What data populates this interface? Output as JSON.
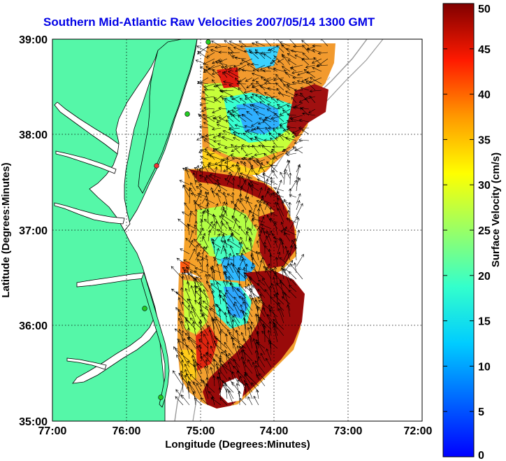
{
  "title": "Southern Mid-Atlantic Raw Velocities 2007/05/14 1300 GMT",
  "map": {
    "xlabel": "Longitude (Degrees:Minutes)",
    "ylabel": "Latitude (Degrees:Minutes)",
    "x_ticks": [
      "77:00",
      "76:00",
      "75:00",
      "74:00",
      "73:00",
      "72:00"
    ],
    "y_ticks": [
      "39:00",
      "38:00",
      "37:00",
      "36:00",
      "35:00"
    ],
    "x_range": [
      -77,
      -72
    ],
    "y_range": [
      35,
      39
    ],
    "grid": "dotted"
  },
  "colorbar": {
    "label": "Surface Velocity (cm/s)",
    "ticks": [
      "50",
      "45",
      "40",
      "35",
      "30",
      "25",
      "20",
      "15",
      "10",
      "5",
      "0"
    ],
    "range": [
      0,
      50
    ],
    "colormap": "jet"
  },
  "colors": {
    "land": "#55f7a8",
    "title": "#0000e6",
    "station": "#22cc22",
    "station_alt": "#ee3333"
  }
}
